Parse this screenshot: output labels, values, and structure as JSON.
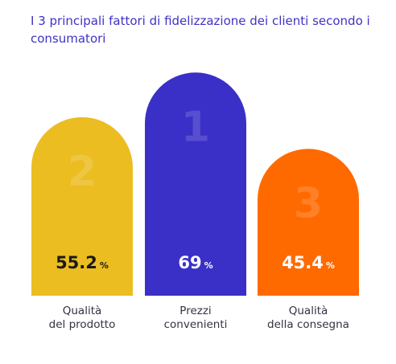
{
  "title": "I 3 principali fattori di fidelizzazione dei clienti secondo i consumatori",
  "chart_data": {
    "type": "bar",
    "title": "I 3 principali fattori di fidelizzazione dei clienti secondo i consumatori",
    "categories": [
      [
        "Qualità",
        "del prodotto"
      ],
      [
        "Prezzi",
        "convenienti"
      ],
      [
        "Qualità",
        "della consegna"
      ]
    ],
    "values": [
      55.2,
      69,
      45.4
    ],
    "value_labels": [
      "55.2",
      "69",
      "45.4"
    ],
    "unit": "%",
    "ranks": [
      "2",
      "1",
      "3"
    ],
    "colors": [
      "#ebbd21",
      "#3a30c8",
      "#ff6a00"
    ],
    "value_text_colors": [
      "#1a1a1a",
      "#ffffff",
      "#ffffff"
    ],
    "xlabel": "",
    "ylabel": "",
    "grid": false,
    "legend": "none"
  }
}
